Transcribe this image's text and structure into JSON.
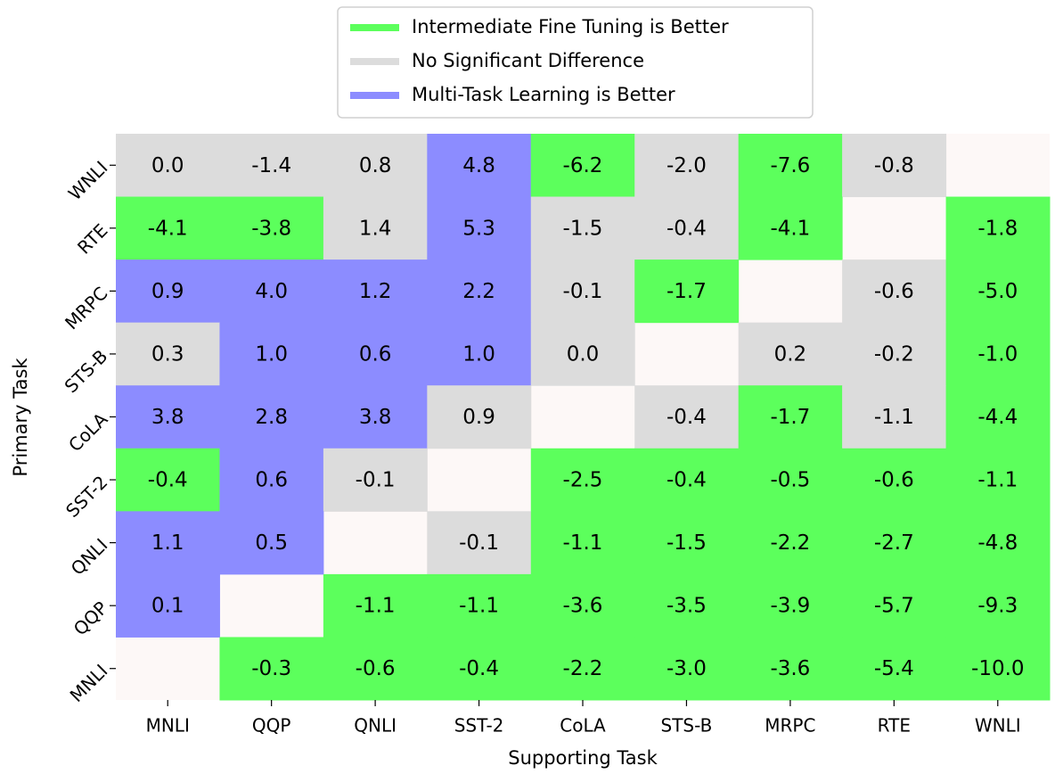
{
  "chart_data": {
    "type": "heatmap",
    "xlabel": "Supporting Task",
    "ylabel": "Primary Task",
    "x_categories": [
      "MNLI",
      "QQP",
      "QNLI",
      "SST-2",
      "CoLA",
      "STS-B",
      "MRPC",
      "RTE",
      "WNLI"
    ],
    "y_categories": [
      "WNLI",
      "RTE",
      "MRPC",
      "STS-B",
      "CoLA",
      "SST-2",
      "QNLI",
      "QQP",
      "MNLI"
    ],
    "series": [
      {
        "name": "Intermediate Fine Tuning is Better",
        "color": "#5cff5c"
      },
      {
        "name": "No Significant Difference",
        "color": "#dcdcdc"
      },
      {
        "name": "Multi-Task Learning is Better",
        "color": "#8c8cff"
      }
    ],
    "values": [
      [
        0.0,
        -1.4,
        0.8,
        4.8,
        -6.2,
        -2.0,
        -7.6,
        -0.8,
        null
      ],
      [
        -4.1,
        -3.8,
        1.4,
        5.3,
        -1.5,
        -0.4,
        -4.1,
        null,
        -1.8
      ],
      [
        0.9,
        4.0,
        1.2,
        2.2,
        -0.1,
        -1.7,
        null,
        -0.6,
        -5.0
      ],
      [
        0.3,
        1.0,
        0.6,
        1.0,
        0.0,
        null,
        0.2,
        -0.2,
        -1.0
      ],
      [
        3.8,
        2.8,
        3.8,
        0.9,
        null,
        -0.4,
        -1.7,
        -1.1,
        -4.4
      ],
      [
        -0.4,
        0.6,
        -0.1,
        null,
        -2.5,
        -0.4,
        -0.5,
        -0.6,
        -1.1
      ],
      [
        1.1,
        0.5,
        null,
        -0.1,
        -1.1,
        -1.5,
        -2.2,
        -2.7,
        -4.8
      ],
      [
        0.1,
        null,
        -1.1,
        -1.1,
        -3.6,
        -3.5,
        -3.9,
        -5.7,
        -9.3
      ],
      [
        null,
        -0.3,
        -0.6,
        -0.4,
        -2.2,
        -3.0,
        -3.6,
        -5.4,
        -10.0
      ]
    ],
    "value_labels": [
      [
        "0.0",
        "-1.4",
        "0.8",
        "4.8",
        "-6.2",
        "-2.0",
        "-7.6",
        "-0.8",
        null
      ],
      [
        "-4.1",
        "-3.8",
        "1.4",
        "5.3",
        "-1.5",
        "-0.4",
        "-4.1",
        null,
        "-1.8"
      ],
      [
        "0.9",
        "4.0",
        "1.2",
        "2.2",
        "-0.1",
        "-1.7",
        null,
        "-0.6",
        "-5.0"
      ],
      [
        "0.3",
        "1.0",
        "0.6",
        "1.0",
        "0.0",
        null,
        "0.2",
        "-0.2",
        "-1.0"
      ],
      [
        "3.8",
        "2.8",
        "3.8",
        "0.9",
        null,
        "-0.4",
        "-1.7",
        "-1.1",
        "-4.4"
      ],
      [
        "-0.4",
        "0.6",
        "-0.1",
        null,
        "-2.5",
        "-0.4",
        "-0.5",
        "-0.6",
        "-1.1"
      ],
      [
        "1.1",
        "0.5",
        null,
        "-0.1",
        "-1.1",
        "-1.5",
        "-2.2",
        "-2.7",
        "-4.8"
      ],
      [
        "0.1",
        null,
        "-1.1",
        "-1.1",
        "-3.6",
        "-3.5",
        "-3.9",
        "-5.7",
        "-9.3"
      ],
      [
        null,
        "-0.3",
        "-0.6",
        "-0.4",
        "-2.2",
        "-3.0",
        "-3.6",
        "-5.4",
        "-10.0"
      ]
    ],
    "cell_colors": [
      [
        "#dcdcdc",
        "#dcdcdc",
        "#dcdcdc",
        "#8c8cff",
        "#5cff5c",
        "#dcdcdc",
        "#5cff5c",
        "#dcdcdc",
        null
      ],
      [
        "#5cff5c",
        "#5cff5c",
        "#dcdcdc",
        "#8c8cff",
        "#dcdcdc",
        "#dcdcdc",
        "#5cff5c",
        null,
        "#5cff5c"
      ],
      [
        "#8c8cff",
        "#8c8cff",
        "#8c8cff",
        "#8c8cff",
        "#dcdcdc",
        "#5cff5c",
        null,
        "#dcdcdc",
        "#5cff5c"
      ],
      [
        "#dcdcdc",
        "#8c8cff",
        "#8c8cff",
        "#8c8cff",
        "#dcdcdc",
        null,
        "#dcdcdc",
        "#dcdcdc",
        "#5cff5c"
      ],
      [
        "#8c8cff",
        "#8c8cff",
        "#8c8cff",
        "#dcdcdc",
        null,
        "#dcdcdc",
        "#5cff5c",
        "#dcdcdc",
        "#5cff5c"
      ],
      [
        "#5cff5c",
        "#8c8cff",
        "#dcdcdc",
        null,
        "#5cff5c",
        "#5cff5c",
        "#5cff5c",
        "#5cff5c",
        "#5cff5c"
      ],
      [
        "#8c8cff",
        "#8c8cff",
        null,
        "#dcdcdc",
        "#5cff5c",
        "#5cff5c",
        "#5cff5c",
        "#5cff5c",
        "#5cff5c"
      ],
      [
        "#8c8cff",
        null,
        "#5cff5c",
        "#5cff5c",
        "#5cff5c",
        "#5cff5c",
        "#5cff5c",
        "#5cff5c",
        "#5cff5c"
      ],
      [
        null,
        "#5cff5c",
        "#5cff5c",
        "#5cff5c",
        "#5cff5c",
        "#5cff5c",
        "#5cff5c",
        "#5cff5c",
        "#5cff5c"
      ]
    ]
  }
}
